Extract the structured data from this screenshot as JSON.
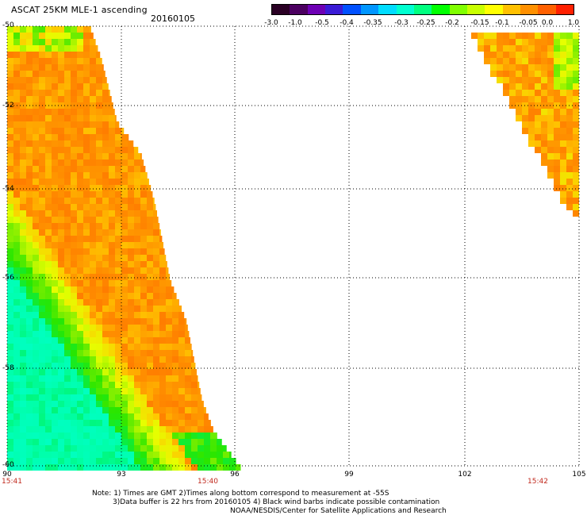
{
  "header": {
    "title": "ASCAT 25KM MLE-1 ascending",
    "date": "20160105"
  },
  "colorbar": {
    "ticks": [
      "-3.0",
      "-1.0",
      "-0.5",
      "-0.4",
      "-0.35",
      "-0.3",
      "-0.25",
      "-0.2",
      "-0.15",
      "-0.1",
      "-0.05",
      "0.0",
      "1.0"
    ],
    "colors": [
      "#2a0024",
      "#4b0060",
      "#6d00b4",
      "#3a1bd6",
      "#0050ff",
      "#0096ff",
      "#00dcff",
      "#00ffd0",
      "#00ff80",
      "#00ff00",
      "#80ff00",
      "#c8ff00",
      "#ffff00",
      "#ffc000",
      "#ff9000",
      "#ff6000",
      "#ff2000"
    ]
  },
  "map": {
    "lat_labels": [
      "-50",
      "-52",
      "-54",
      "-56",
      "-58",
      "-60"
    ],
    "lon_labels": [
      "90",
      "93",
      "96",
      "99",
      "102",
      "105"
    ],
    "time_labels": [
      "15:41",
      "15:40",
      "15:42"
    ],
    "lat_range": [
      -60,
      -50
    ],
    "lon_range": [
      90,
      105
    ]
  },
  "notes": {
    "line1": "Note: 1) Times are GMT 2)Times along bottom correspond to measurement at -55S",
    "line2": "3)Data buffer is 22 hrs from 20160105 4) Black wind barbs indicate possible contamination",
    "line3": "NOAA/NESDIS/Center for Satellite Applications and Research"
  }
}
